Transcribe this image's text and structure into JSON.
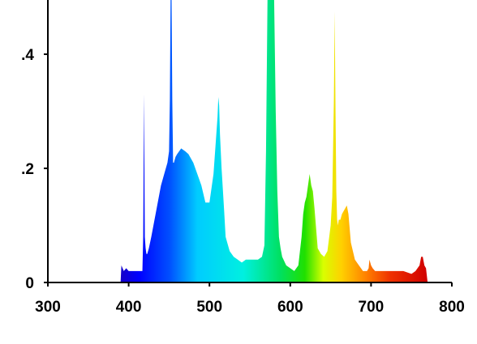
{
  "chart_data": {
    "type": "area",
    "title": "",
    "xlabel": "",
    "ylabel": "",
    "xlim": [
      300,
      800
    ],
    "ylim": [
      0,
      0.5
    ],
    "grid": false,
    "legend": "none",
    "x_ticks": [
      {
        "value": 300,
        "label": "300"
      },
      {
        "value": 400,
        "label": "400"
      },
      {
        "value": 500,
        "label": "500"
      },
      {
        "value": 600,
        "label": "600"
      },
      {
        "value": 700,
        "label": "700"
      },
      {
        "value": 800,
        "label": "800"
      }
    ],
    "y_ticks": [
      {
        "value": 0,
        "label": "0"
      },
      {
        "value": 0.2,
        "label": ".2"
      },
      {
        "value": 0.4,
        "label": ".4"
      }
    ],
    "fill": "visible spectrum gradient (violet to red by wavelength)",
    "series": [
      {
        "x": [
          390,
          391,
          394,
          397,
          400,
          405,
          410,
          414,
          417,
          418,
          419,
          420,
          421,
          422,
          423,
          425,
          428,
          432,
          436,
          440,
          444,
          448,
          450,
          451,
          452,
          453,
          454,
          455,
          456,
          457,
          458,
          460,
          465,
          470,
          474,
          480,
          485,
          490,
          495,
          500,
          505,
          508,
          510,
          511,
          512,
          513,
          515,
          518,
          520,
          525,
          530,
          535,
          540,
          545,
          550,
          555,
          560,
          565,
          568,
          570,
          572,
          574,
          576,
          578,
          580,
          582,
          584,
          586,
          588,
          590,
          595,
          600,
          605,
          610,
          614,
          616,
          618,
          620,
          622,
          624,
          626,
          628,
          630,
          634,
          638,
          642,
          646,
          650,
          652,
          654,
          655,
          656,
          657,
          658,
          659,
          660,
          662,
          664,
          666,
          668,
          670,
          672,
          675,
          680,
          685,
          690,
          695,
          697,
          698,
          700,
          702,
          705,
          710,
          720,
          730,
          740,
          750,
          755,
          760,
          762,
          764,
          766,
          768,
          770
        ],
        "y": [
          0.0,
          0.03,
          0.02,
          0.025,
          0.02,
          0.02,
          0.02,
          0.02,
          0.02,
          0.08,
          0.33,
          0.08,
          0.06,
          0.05,
          0.05,
          0.06,
          0.08,
          0.11,
          0.14,
          0.17,
          0.19,
          0.21,
          0.23,
          0.32,
          0.52,
          0.52,
          0.32,
          0.21,
          0.21,
          0.215,
          0.22,
          0.225,
          0.235,
          0.23,
          0.225,
          0.21,
          0.19,
          0.17,
          0.14,
          0.14,
          0.19,
          0.25,
          0.29,
          0.325,
          0.31,
          0.26,
          0.2,
          0.13,
          0.08,
          0.055,
          0.045,
          0.04,
          0.035,
          0.04,
          0.04,
          0.04,
          0.04,
          0.045,
          0.065,
          0.23,
          0.52,
          0.52,
          0.52,
          0.52,
          0.5,
          0.3,
          0.16,
          0.08,
          0.06,
          0.045,
          0.03,
          0.025,
          0.02,
          0.03,
          0.08,
          0.12,
          0.14,
          0.15,
          0.17,
          0.19,
          0.17,
          0.16,
          0.13,
          0.06,
          0.05,
          0.045,
          0.055,
          0.1,
          0.15,
          0.32,
          0.475,
          0.3,
          0.16,
          0.11,
          0.1,
          0.11,
          0.11,
          0.12,
          0.125,
          0.13,
          0.135,
          0.12,
          0.07,
          0.04,
          0.03,
          0.02,
          0.02,
          0.025,
          0.04,
          0.03,
          0.025,
          0.02,
          0.02,
          0.02,
          0.02,
          0.02,
          0.015,
          0.02,
          0.03,
          0.045,
          0.045,
          0.03,
          0.025,
          0.0
        ]
      }
    ]
  }
}
